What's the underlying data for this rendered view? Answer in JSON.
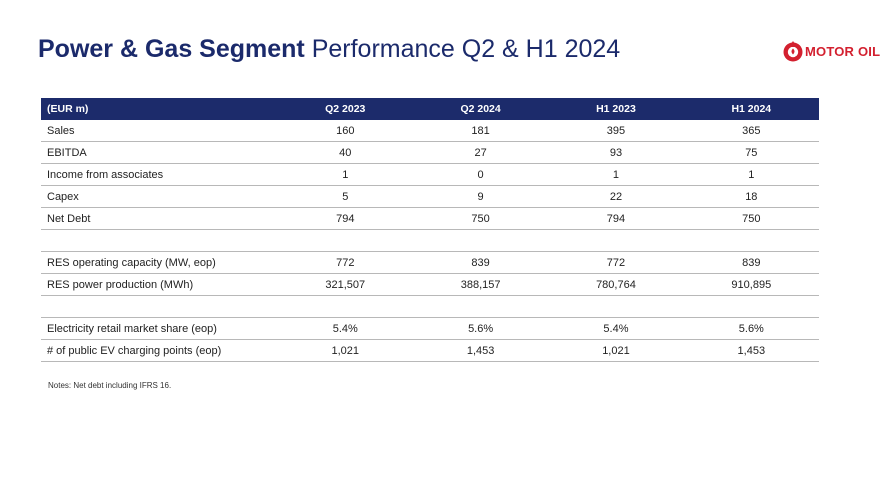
{
  "title": {
    "bold": "Power & Gas Segment",
    "regular": "Performance Q2 & H1 2024"
  },
  "logo": {
    "text": "MOTOR OIL",
    "color": "#d3202f"
  },
  "table": {
    "header": [
      "(EUR m)",
      "Q2 2023",
      "Q2 2024",
      "H1 2023",
      "H1 2024"
    ],
    "rows": [
      {
        "label": "Sales",
        "values": [
          "160",
          "181",
          "395",
          "365"
        ]
      },
      {
        "label": "EBITDA",
        "values": [
          "40",
          "27",
          "93",
          "75"
        ]
      },
      {
        "label": "Income from associates",
        "values": [
          "1",
          "0",
          "1",
          "1"
        ]
      },
      {
        "label": "Capex",
        "values": [
          "5",
          "9",
          "22",
          "18"
        ]
      },
      {
        "label": "Net Debt",
        "values": [
          "794",
          "750",
          "794",
          "750"
        ]
      },
      {
        "label": "RES operating capacity (MW, eop)",
        "values": [
          "772",
          "839",
          "772",
          "839"
        ]
      },
      {
        "label": "RES power production (MWh)",
        "values": [
          "321,507",
          "388,157",
          "780,764",
          "910,895"
        ]
      },
      {
        "label": "Electricity retail market share (eop)",
        "values": [
          "5.4%",
          "5.6%",
          "5.4%",
          "5.6%"
        ]
      },
      {
        "label": "# of public EV charging points (eop)",
        "values": [
          "1,021",
          "1,453",
          "1,021",
          "1,453"
        ]
      }
    ]
  },
  "notes": "Notes: Net debt including IFRS 16.",
  "colors": {
    "header_bg": "#1c2b6b",
    "title": "#1b2a6b"
  }
}
